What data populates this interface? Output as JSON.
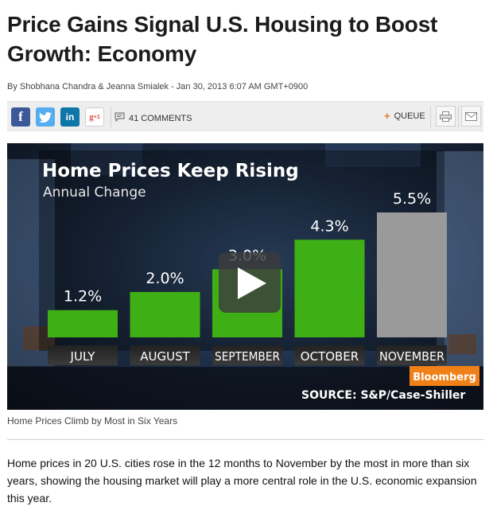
{
  "article": {
    "headline": "Price Gains Signal U.S. Housing to Boost Growth: Economy",
    "byline": "By Shobhana Chandra & Jeanna Smialek - Jan 30, 2013 6:07 AM GMT+0900",
    "caption": "Home Prices Climb by Most in Six Years",
    "body": "Home prices in 20 U.S. cities rose in the 12 months to November by the most in more than six years, showing the housing market will play a more central role in the U.S. economic expansion this year."
  },
  "share_bar": {
    "facebook": "f",
    "linkedin": "in",
    "google_plus": "g",
    "google_plus_sup": "+1",
    "comments": "41 COMMENTS",
    "queue_symbol": "+",
    "queue": "QUEUE",
    "icons": {
      "facebook": "facebook-icon",
      "twitter": "twitter-icon",
      "linkedin": "linkedin-icon",
      "google_plus": "google-plus-icon",
      "comments": "comment-bubble-icon",
      "print": "print-icon",
      "email": "email-icon"
    },
    "colors": {
      "facebook": "#3b5998",
      "twitter": "#55acee",
      "linkedin": "#0e76a8",
      "queue_accent": "#e8792a"
    }
  },
  "video": {
    "brand": "Bloomberg",
    "source": "SOURCE: S&P/Case-Shiller",
    "play_icon": "play-icon",
    "brand_color": "#f08018",
    "chart_data": {
      "type": "bar",
      "title": "Home Prices Keep Rising",
      "subtitle": "Annual Change",
      "categories": [
        "JULY",
        "AUGUST",
        "SEPTEMBER",
        "OCTOBER",
        "NOVEMBER"
      ],
      "values": [
        1.2,
        2.0,
        3.0,
        4.3,
        5.5
      ],
      "value_labels": [
        "1.2%",
        "2.0%",
        "3.0%",
        "4.3%",
        "5.5%"
      ],
      "colors": [
        "#3faf16",
        "#3faf16",
        "#3faf16",
        "#3faf16",
        "#9a9a9a"
      ],
      "ylim": [
        0,
        5.5
      ],
      "grid": false
    }
  }
}
